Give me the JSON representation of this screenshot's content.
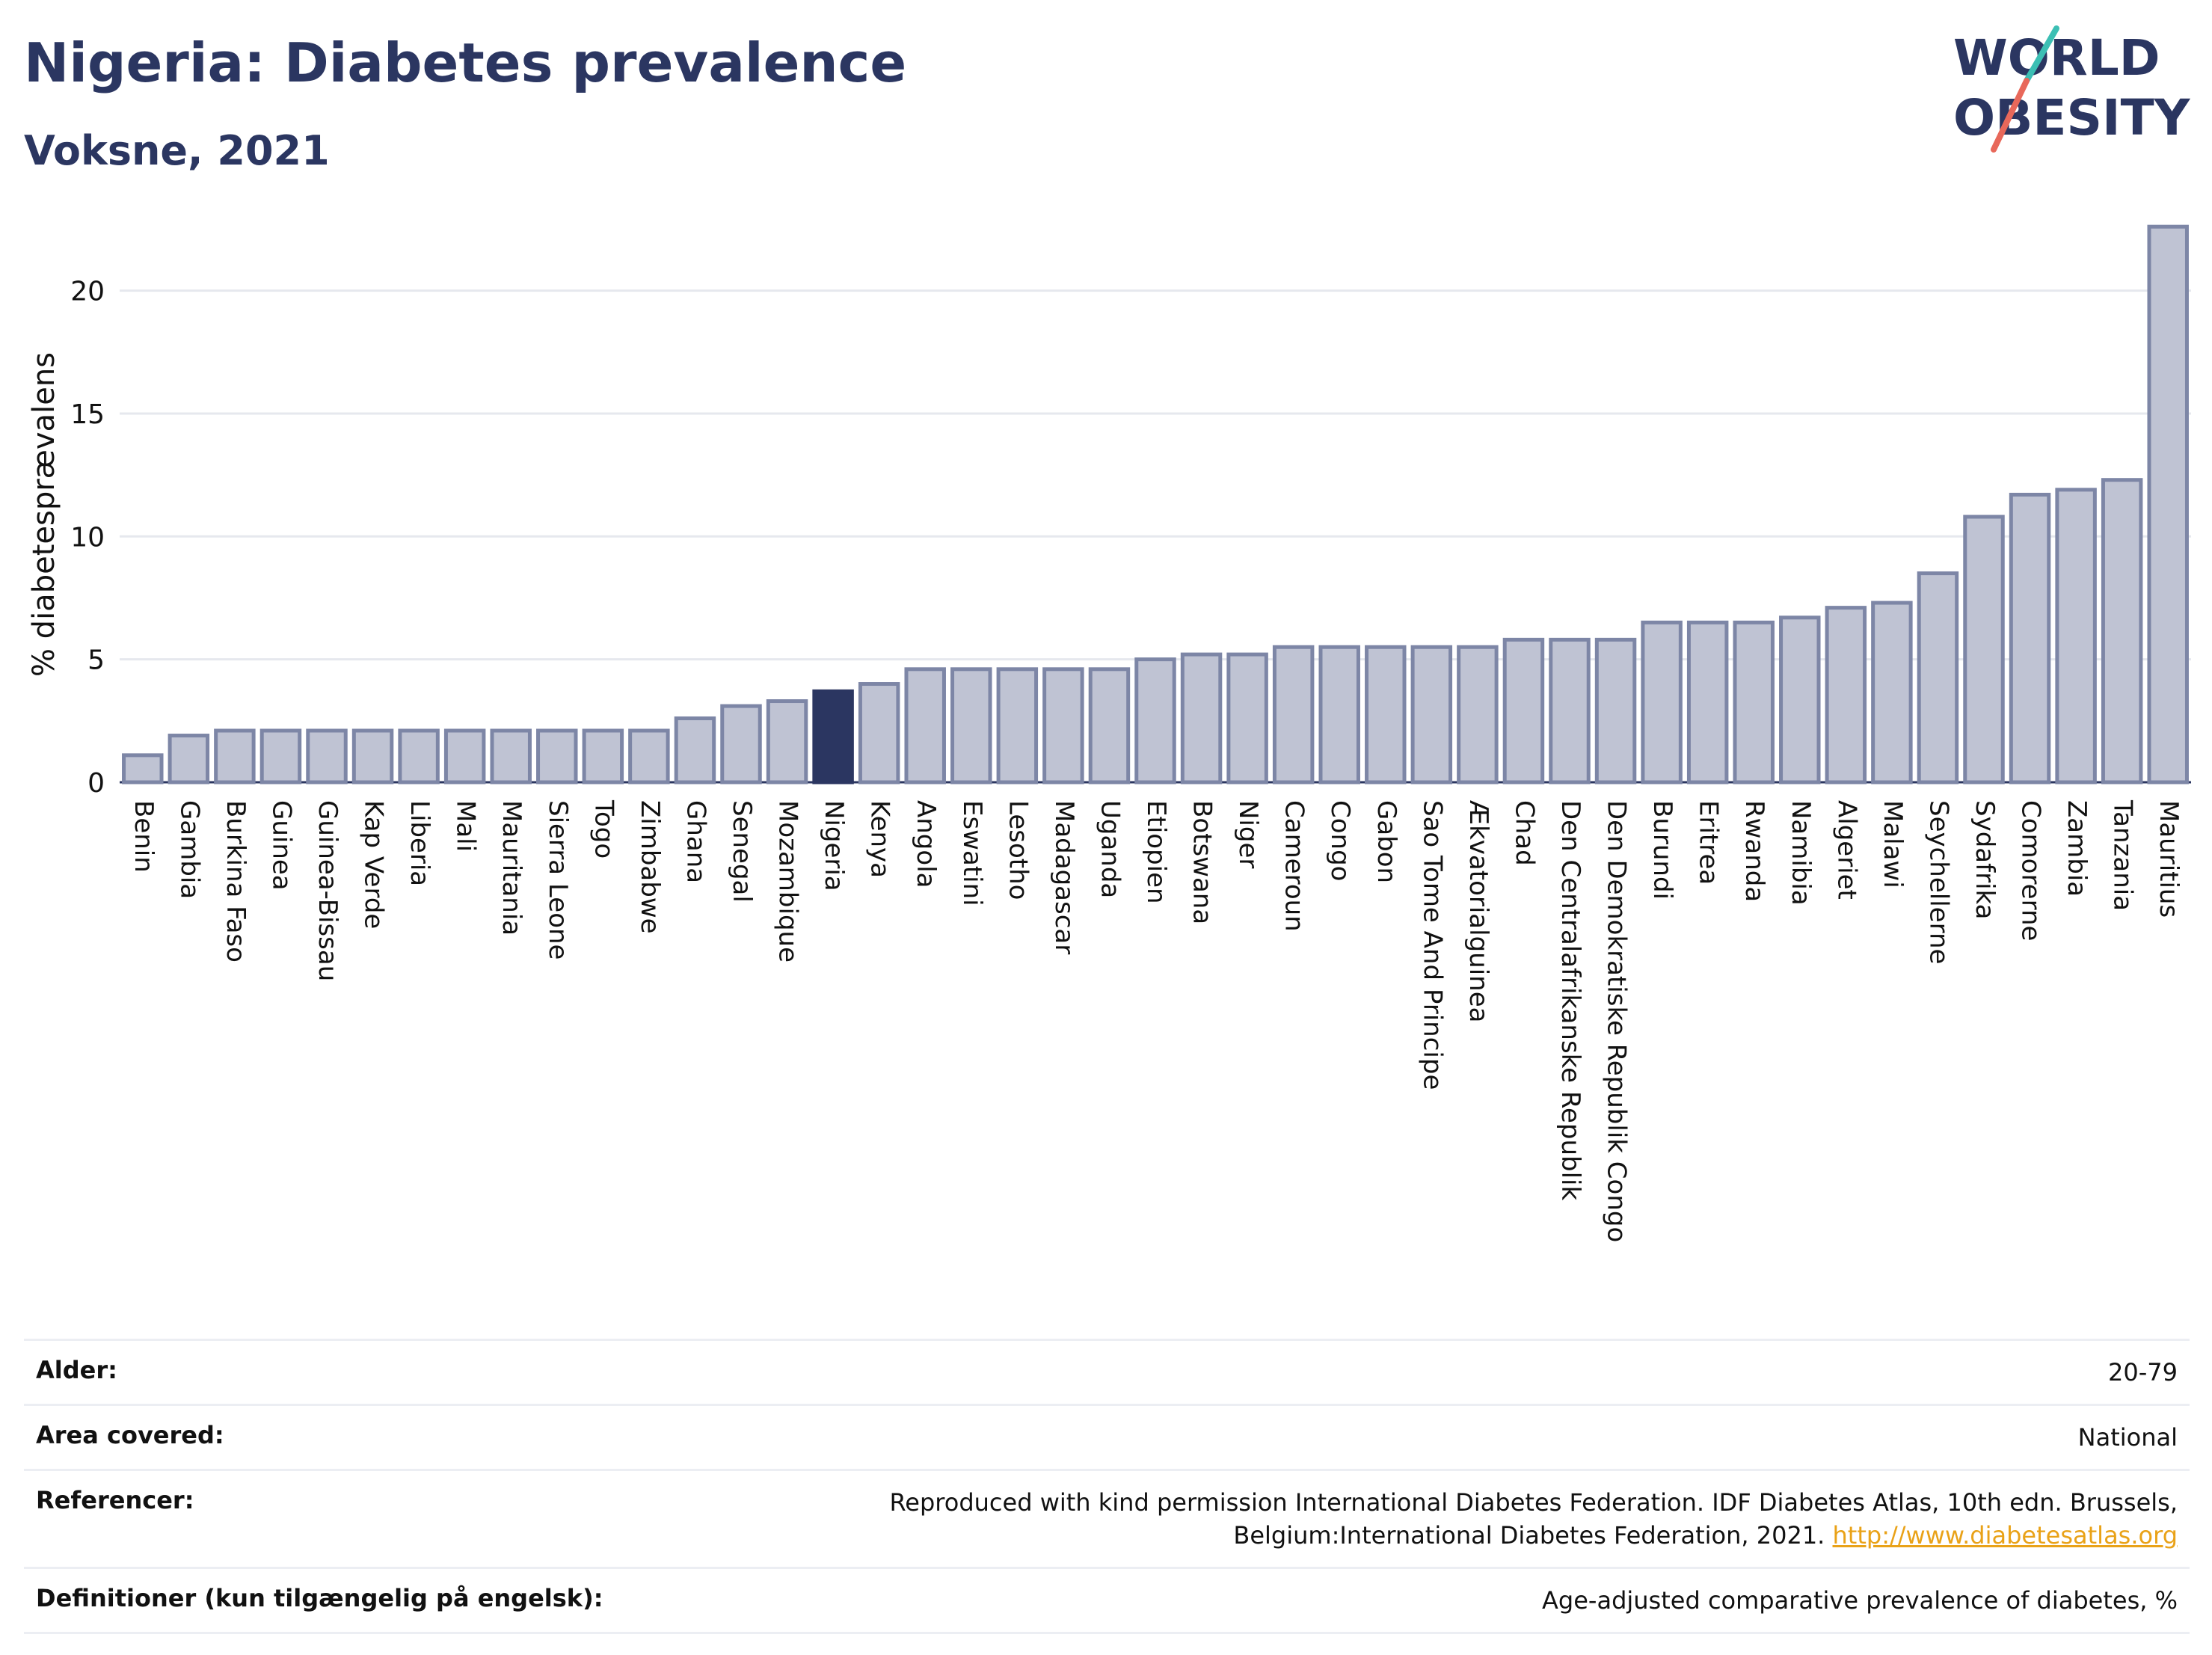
{
  "header": {
    "title": "Nigeria: Diabetes prevalence",
    "subtitle": "Voksne, 2021"
  },
  "logo": {
    "line1": "WORLD",
    "line2": "OBESITY"
  },
  "chart_data": {
    "type": "bar",
    "title": "Nigeria: Diabetes prevalence",
    "subtitle": "Voksne, 2021",
    "xlabel": "",
    "ylabel": "% diabetesprævalens",
    "ylim": [
      0,
      23
    ],
    "yticks": [
      0,
      5,
      10,
      15,
      20
    ],
    "grid": true,
    "highlight": "Nigeria",
    "colors": {
      "bar": "#bfc3d3",
      "bar_border": "#7d86a6",
      "highlight": "#2b3661",
      "grid": "#e6e8ee"
    },
    "categories": [
      "Benin",
      "Gambia",
      "Burkina Faso",
      "Guinea",
      "Guinea-Bissau",
      "Kap Verde",
      "Liberia",
      "Mali",
      "Mauritania",
      "Sierra Leone",
      "Togo",
      "Zimbabwe",
      "Ghana",
      "Senegal",
      "Mozambique",
      "Nigeria",
      "Kenya",
      "Angola",
      "Eswatini",
      "Lesotho",
      "Madagascar",
      "Uganda",
      "Etiopien",
      "Botswana",
      "Niger",
      "Cameroun",
      "Congo",
      "Gabon",
      "Sao Tome And Principe",
      "Ækvatorialguinea",
      "Chad",
      "Den Centralafrikanske Republik",
      "Den Demokratiske Republik Congo",
      "Burundi",
      "Eritrea",
      "Rwanda",
      "Namibia",
      "Algeriet",
      "Malawi",
      "Seychellerne",
      "Sydafrika",
      "Comorerne",
      "Zambia",
      "Tanzania",
      "Mauritius"
    ],
    "values": [
      1.1,
      1.9,
      2.1,
      2.1,
      2.1,
      2.1,
      2.1,
      2.1,
      2.1,
      2.1,
      2.1,
      2.1,
      2.6,
      3.1,
      3.3,
      3.7,
      4.0,
      4.6,
      4.6,
      4.6,
      4.6,
      4.6,
      5.0,
      5.2,
      5.2,
      5.5,
      5.5,
      5.5,
      5.5,
      5.5,
      5.8,
      5.8,
      5.8,
      6.5,
      6.5,
      6.5,
      6.7,
      7.1,
      7.3,
      8.5,
      10.8,
      11.7,
      11.9,
      12.3,
      22.6
    ]
  },
  "meta": {
    "rows": [
      {
        "label": "Alder:",
        "value": "20-79"
      },
      {
        "label": "Area covered:",
        "value": "National"
      },
      {
        "label": "Referencer:",
        "value": "Reproduced with kind permission International Diabetes Federation.  IDF Diabetes Atlas, 10th edn. Brussels, Belgium:International Diabetes Federation, 2021.",
        "link": "http://www.diabetesatlas.org"
      },
      {
        "label": "Definitioner (kun tilgængelig på engelsk):",
        "value": "Age-adjusted comparative prevalence of diabetes, %"
      }
    ]
  }
}
